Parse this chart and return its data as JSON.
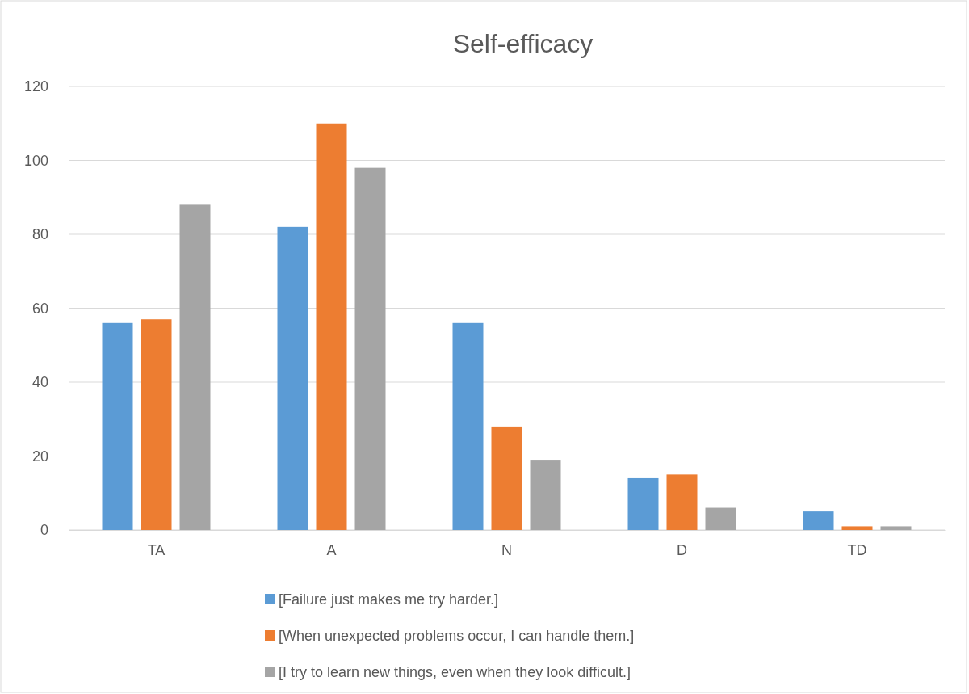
{
  "chart_data": {
    "type": "bar",
    "title": "Self-efficacy",
    "categories": [
      "TA",
      "A",
      "N",
      "D",
      "TD"
    ],
    "series": [
      {
        "name": "[Failure just makes me try harder.]",
        "color": "#5b9bd5",
        "values": [
          56,
          82,
          56,
          14,
          5
        ]
      },
      {
        "name": "[When unexpected problems occur, I can handle them.]",
        "color": "#ed7d31",
        "values": [
          57,
          110,
          28,
          15,
          1
        ]
      },
      {
        "name": "[I try to learn new things, even when they look difficult.]",
        "color": "#a5a5a5",
        "values": [
          88,
          98,
          19,
          6,
          1
        ]
      }
    ],
    "ylim": [
      0,
      120
    ],
    "yticks": [
      0,
      20,
      40,
      60,
      80,
      100,
      120
    ],
    "grid": "y",
    "legend": "bottom"
  }
}
